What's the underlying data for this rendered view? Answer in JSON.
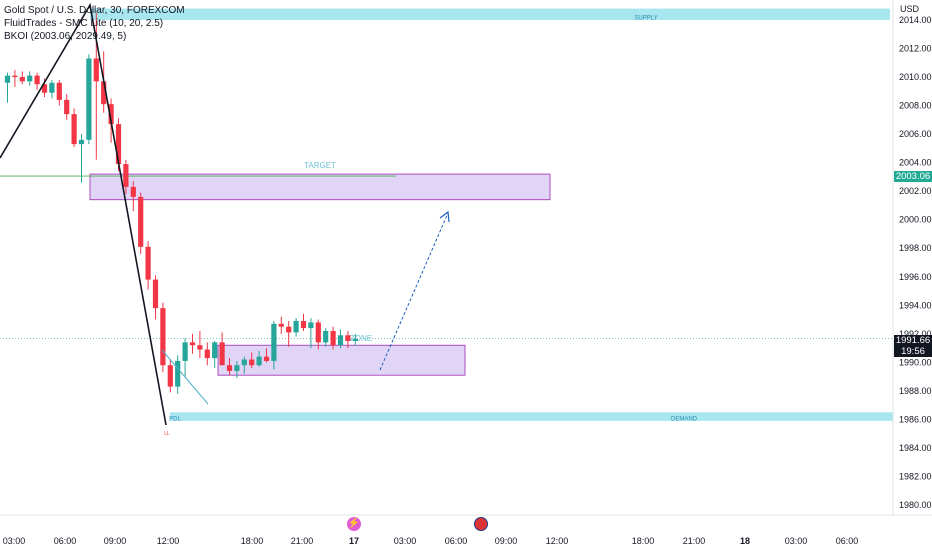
{
  "header": {
    "symbol_line": "Gold Spot / U.S. Dollar, 30, FOREXCOM",
    "indicator1": "FluidTrades - SMC Lite (10, 20, 2.5)",
    "indicator2": "BKOI (2003.06, 2029.49, 5)"
  },
  "price_axis": {
    "currency": "USD",
    "ticks": [
      "2014.00",
      "2012.00",
      "2010.00",
      "2008.00",
      "2006.00",
      "2004.00",
      "2002.00",
      "2000.00",
      "1998.00",
      "1996.00",
      "1994.00",
      "1992.00",
      "1990.00",
      "1988.00",
      "1986.00",
      "1984.00",
      "1982.00",
      "1980.00"
    ],
    "target_price_tag": "2003.06",
    "current_price_tag": "1991.66",
    "countdown": "19:56"
  },
  "time_axis": {
    "labels": [
      "03:00",
      "06:00",
      "09:00",
      "12:00",
      "18:00",
      "21:00",
      "17",
      "03:00",
      "06:00",
      "09:00",
      "12:00",
      "18:00",
      "21:00",
      "18",
      "03:00",
      "06:00"
    ]
  },
  "zones": {
    "supply_label": "SUPPLY",
    "demand_label": "DEMAND",
    "target_label": "TARGET",
    "zone_label": "ZONE",
    "pdl_label": "PDL",
    "marker_label": "LL"
  },
  "colors": {
    "up": "#26a69a",
    "down": "#f23645",
    "supply_fill": "#a8e6f0",
    "target_fill": "#e1d5f7",
    "target_border": "#9c27b0",
    "arrow": "#1e5fbf",
    "target_tag": "#22ab94",
    "price_tag": "#131722"
  },
  "chart_data": {
    "type": "candlestick",
    "series_ohlc": [
      [
        2009.6,
        2010.3,
        2008.2,
        2010.1
      ],
      [
        2010.1,
        2010.5,
        2009.3,
        2010.0
      ],
      [
        2010.0,
        2010.4,
        2009.5,
        2009.7
      ],
      [
        2009.7,
        2010.4,
        2009.4,
        2010.1
      ],
      [
        2010.1,
        2010.3,
        2009.1,
        2009.5
      ],
      [
        2009.5,
        2009.9,
        2008.6,
        2008.9
      ],
      [
        2008.9,
        2009.8,
        2008.5,
        2009.6
      ],
      [
        2009.6,
        2009.8,
        2008.0,
        2008.4
      ],
      [
        2008.4,
        2008.8,
        2007.0,
        2007.4
      ],
      [
        2007.4,
        2007.8,
        2005.1,
        2005.3
      ],
      [
        2005.3,
        2006.0,
        2002.6,
        2005.6
      ],
      [
        2005.6,
        2011.6,
        2005.3,
        2011.3
      ],
      [
        2011.3,
        2014.5,
        2004.2,
        2009.7
      ],
      [
        2009.7,
        2011.8,
        2007.5,
        2008.1
      ],
      [
        2008.1,
        2008.5,
        2005.4,
        2006.7
      ],
      [
        2006.7,
        2007.1,
        2003.4,
        2003.9
      ],
      [
        2003.9,
        2004.2,
        2001.8,
        2002.3
      ],
      [
        2002.3,
        2002.7,
        2000.6,
        2001.6
      ],
      [
        2001.6,
        2001.9,
        1997.6,
        1998.1
      ],
      [
        1998.1,
        1998.5,
        1995.1,
        1995.8
      ],
      [
        1995.8,
        1996.1,
        1993.0,
        1993.8
      ],
      [
        1993.8,
        1994.2,
        1989.3,
        1989.8
      ],
      [
        1989.8,
        1990.2,
        1987.9,
        1988.3
      ],
      [
        1988.3,
        1990.5,
        1987.8,
        1990.1
      ],
      [
        1990.1,
        1991.7,
        1989.0,
        1991.4
      ],
      [
        1991.4,
        1992.0,
        1990.6,
        1991.2
      ],
      [
        1991.2,
        1992.2,
        1990.3,
        1990.9
      ],
      [
        1990.9,
        1991.4,
        1989.8,
        1990.3
      ],
      [
        1990.3,
        1991.5,
        1989.6,
        1991.4
      ],
      [
        1991.4,
        1992.1,
        1989.8,
        1989.8
      ],
      [
        1989.8,
        1990.3,
        1989.1,
        1989.4
      ],
      [
        1989.4,
        1990.1,
        1988.9,
        1989.8
      ],
      [
        1989.8,
        1990.4,
        1989.2,
        1990.2
      ],
      [
        1990.2,
        1990.7,
        1989.6,
        1989.8
      ],
      [
        1989.8,
        1990.8,
        1989.7,
        1990.4
      ],
      [
        1990.4,
        1991.0,
        1990.0,
        1990.1
      ],
      [
        1990.1,
        1992.9,
        1989.5,
        1992.7
      ],
      [
        1992.7,
        1993.2,
        1992.0,
        1992.5
      ],
      [
        1992.5,
        1992.9,
        1991.1,
        1992.1
      ],
      [
        1992.1,
        1993.1,
        1991.8,
        1992.9
      ],
      [
        1992.9,
        1993.4,
        1992.2,
        1992.4
      ],
      [
        1992.4,
        1993.1,
        1991.0,
        1992.8
      ],
      [
        1992.8,
        1993.0,
        1990.9,
        1991.4
      ],
      [
        1991.4,
        1992.4,
        1991.1,
        1992.2
      ],
      [
        1992.2,
        1992.5,
        1990.9,
        1991.2
      ],
      [
        1991.2,
        1992.3,
        1991.0,
        1991.9
      ],
      [
        1991.9,
        1992.2,
        1991.0,
        1991.5
      ],
      [
        1991.5,
        1992.0,
        1991.2,
        1991.66
      ]
    ],
    "ylim": [
      1979.5,
      2015.0
    ],
    "supply_zone": [
      2014.0,
      2014.8
    ],
    "target_zone": [
      2001.4,
      2003.2
    ],
    "entry_zone": [
      1989.1,
      1991.2
    ],
    "demand_zone": [
      1985.9,
      1986.5
    ],
    "target_line": 2003.06,
    "current_price": 1991.66
  }
}
